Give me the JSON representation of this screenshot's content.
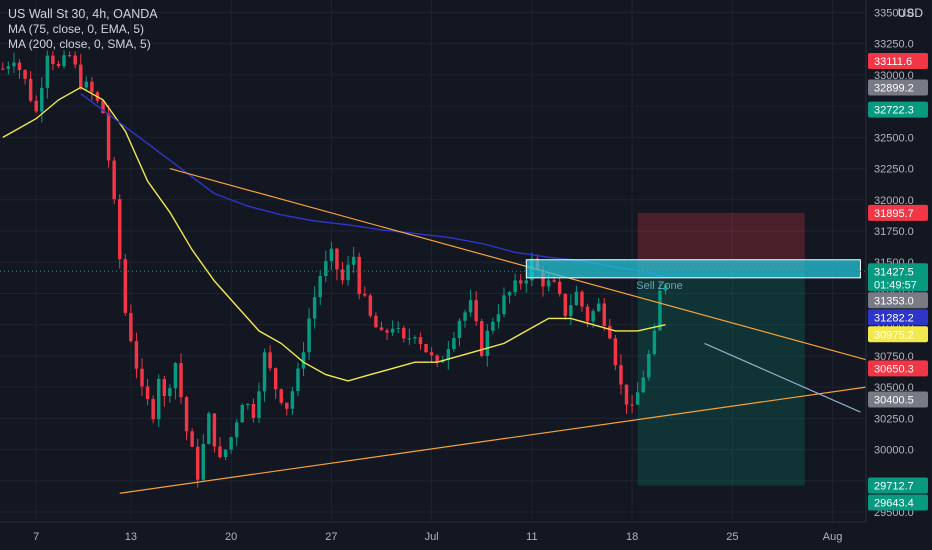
{
  "header": {
    "title": "US Wall St 30, 4h, OANDA",
    "indicators": [
      "MA (75, close, 0, EMA, 5)",
      "MA (200, close, 0, SMA, 5)"
    ],
    "currency": "USD"
  },
  "chart_data": {
    "type": "candlestick",
    "x_ticks": [
      {
        "label": "7",
        "t": 6
      },
      {
        "label": "13",
        "t": 23
      },
      {
        "label": "20",
        "t": 41
      },
      {
        "label": "27",
        "t": 59
      },
      {
        "label": "Jul",
        "t": 77
      },
      {
        "label": "11",
        "t": 95
      },
      {
        "label": "18",
        "t": 113
      },
      {
        "label": "25",
        "t": 131
      },
      {
        "label": "Aug",
        "t": 149
      }
    ],
    "y_ticks": [
      29500,
      29750,
      30000,
      30250,
      30500,
      30750,
      31000,
      31250,
      31500,
      31750,
      32000,
      32250,
      32500,
      32750,
      33000,
      33250,
      33500
    ],
    "ylim": [
      29420,
      33600
    ],
    "xlim": [
      -0.5,
      155
    ],
    "candles_anchor_path": [
      [
        0,
        33050
      ],
      [
        2,
        33150
      ],
      [
        4,
        32950
      ],
      [
        6,
        32700
      ],
      [
        8,
        33200
      ],
      [
        10,
        33050
      ],
      [
        12,
        33150
      ],
      [
        14,
        32950
      ],
      [
        16,
        32850
      ],
      [
        18,
        32700
      ],
      [
        20,
        31950
      ],
      [
        22,
        31100
      ],
      [
        23,
        30900
      ],
      [
        25,
        30450
      ],
      [
        27,
        30300
      ],
      [
        28,
        30600
      ],
      [
        29,
        30400
      ],
      [
        31,
        30700
      ],
      [
        33,
        30150
      ],
      [
        35,
        29800
      ],
      [
        37,
        30250
      ],
      [
        39,
        29900
      ],
      [
        41,
        30100
      ],
      [
        43,
        30400
      ],
      [
        45,
        30300
      ],
      [
        47,
        30750
      ],
      [
        49,
        30500
      ],
      [
        51,
        30350
      ],
      [
        53,
        30600
      ],
      [
        55,
        31050
      ],
      [
        57,
        31400
      ],
      [
        59,
        31550
      ],
      [
        61,
        31350
      ],
      [
        63,
        31550
      ],
      [
        64,
        31300
      ],
      [
        66,
        31050
      ],
      [
        68,
        30900
      ],
      [
        70,
        31000
      ],
      [
        72,
        30850
      ],
      [
        74,
        30950
      ],
      [
        76,
        30800
      ],
      [
        78,
        30650
      ],
      [
        80,
        30850
      ],
      [
        82,
        31050
      ],
      [
        84,
        31150
      ],
      [
        86,
        30800
      ],
      [
        88,
        31050
      ],
      [
        90,
        31200
      ],
      [
        92,
        31300
      ],
      [
        94,
        31400
      ],
      [
        95,
        31500
      ],
      [
        97,
        31350
      ],
      [
        99,
        31300
      ],
      [
        101,
        31100
      ],
      [
        103,
        31250
      ],
      [
        105,
        31050
      ],
      [
        107,
        31150
      ],
      [
        109,
        30950
      ],
      [
        111,
        30500
      ],
      [
        113,
        30300
      ],
      [
        115,
        30600
      ],
      [
        117,
        30900
      ],
      [
        118,
        31250
      ],
      [
        119,
        31350
      ]
    ],
    "series": [
      {
        "name": "MA (75, close, 0, EMA, 5)",
        "color": "#f2e94e",
        "points": [
          [
            0,
            32500
          ],
          [
            6,
            32650
          ],
          [
            10,
            32800
          ],
          [
            14,
            32900
          ],
          [
            18,
            32800
          ],
          [
            22,
            32550
          ],
          [
            26,
            32150
          ],
          [
            30,
            31900
          ],
          [
            34,
            31600
          ],
          [
            38,
            31350
          ],
          [
            42,
            31150
          ],
          [
            46,
            30950
          ],
          [
            50,
            30850
          ],
          [
            54,
            30700
          ],
          [
            58,
            30600
          ],
          [
            62,
            30550
          ],
          [
            66,
            30600
          ],
          [
            70,
            30650
          ],
          [
            74,
            30700
          ],
          [
            78,
            30700
          ],
          [
            82,
            30750
          ],
          [
            86,
            30800
          ],
          [
            90,
            30850
          ],
          [
            94,
            30950
          ],
          [
            98,
            31050
          ],
          [
            102,
            31050
          ],
          [
            106,
            31000
          ],
          [
            110,
            30950
          ],
          [
            114,
            30950
          ],
          [
            119,
            31000
          ]
        ]
      },
      {
        "name": "MA (200, close, 0, SMA, 5)",
        "color": "#2e35c9",
        "points": [
          [
            14,
            32850
          ],
          [
            20,
            32650
          ],
          [
            26,
            32450
          ],
          [
            32,
            32250
          ],
          [
            38,
            32050
          ],
          [
            44,
            31950
          ],
          [
            50,
            31880
          ],
          [
            56,
            31830
          ],
          [
            62,
            31800
          ],
          [
            68,
            31760
          ],
          [
            74,
            31730
          ],
          [
            80,
            31700
          ],
          [
            86,
            31650
          ],
          [
            92,
            31580
          ],
          [
            98,
            31540
          ],
          [
            104,
            31510
          ],
          [
            110,
            31460
          ],
          [
            116,
            31420
          ],
          [
            119,
            31380
          ]
        ]
      }
    ],
    "trendlines": [
      {
        "name": "descending-resistance",
        "color": "#f7a13a",
        "from": [
          30,
          32250
        ],
        "to": [
          155,
          30720
        ]
      },
      {
        "name": "ascending-support",
        "color": "#f7a13a",
        "from": [
          21,
          29650
        ],
        "to": [
          155,
          30500
        ]
      },
      {
        "name": "target-line",
        "color": "#8fb0c8",
        "from": [
          126,
          30850
        ],
        "to": [
          154,
          30300
        ]
      }
    ],
    "annotations": {
      "zone_label": "Sell Zone",
      "zone": {
        "from_t": 94,
        "to_t": 154,
        "low": 31375,
        "high": 31520
      },
      "short_position": {
        "from_t": 114,
        "to_t": 144,
        "entry": 31427.5,
        "stop": 31895.7,
        "target": 29712.7
      }
    },
    "price_tags": [
      {
        "label": "33111.6",
        "value": 33111.6,
        "color": "#f23645"
      },
      {
        "label": "32899.2",
        "value": 32899.2,
        "color": "#787b86"
      },
      {
        "label": "32722.3",
        "value": 32722.3,
        "color": "#089981"
      },
      {
        "label": "31895.7",
        "value": 31895.7,
        "color": "#f23645"
      },
      {
        "label": "31427.5",
        "sublabel": "01:49:57",
        "value": 31427.5,
        "color": "#089981"
      },
      {
        "label": "31353.0",
        "value": 31353.0,
        "color": "#787b86"
      },
      {
        "label": "31282.2",
        "value": 31282.2,
        "color": "#2e35c9"
      },
      {
        "label": "30975.2",
        "value": 30975.2,
        "color": "#f2e94e",
        "text_color": "#131722"
      },
      {
        "label": "30650.3",
        "value": 30650.3,
        "color": "#f23645"
      },
      {
        "label": "30400.5",
        "value": 30400.5,
        "color": "#787b86"
      },
      {
        "label": "29712.7",
        "value": 29712.7,
        "color": "#089981"
      },
      {
        "label": "29643.4",
        "value": 29643.4,
        "color": "#089981"
      }
    ],
    "colors": {
      "up": "#089981",
      "down": "#f23645",
      "background": "#131722",
      "grid": "#1f2330",
      "axis_text": "#b2b5be"
    }
  }
}
